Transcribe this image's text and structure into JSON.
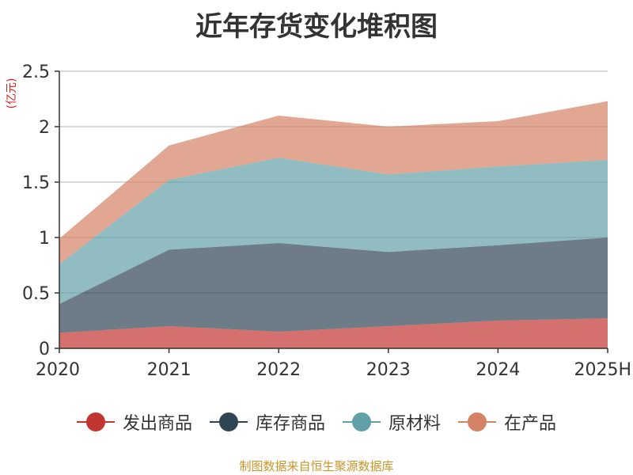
{
  "chart_data": {
    "type": "area",
    "stacked": true,
    "title": "近年存货变化堆积图",
    "ylabel": "(亿元)",
    "categories": [
      "2020",
      "2021",
      "2022",
      "2023",
      "2024",
      "2025H"
    ],
    "ylim": [
      0,
      2.5
    ],
    "yticks": [
      0,
      0.5,
      1,
      1.5,
      2,
      2.5
    ],
    "ytick_labels": [
      "0",
      "0.5",
      "1",
      "1.5",
      "2",
      "2.5"
    ],
    "grid": true,
    "legend_position": "bottom",
    "series": [
      {
        "name": "发出商品",
        "color": "#c23531",
        "values": [
          0.14,
          0.2,
          0.15,
          0.2,
          0.25,
          0.27
        ]
      },
      {
        "name": "库存商品",
        "color": "#2f4554",
        "values": [
          0.26,
          0.69,
          0.8,
          0.67,
          0.68,
          0.73
        ]
      },
      {
        "name": "原材料",
        "color": "#61a0a8",
        "values": [
          0.36,
          0.63,
          0.77,
          0.7,
          0.71,
          0.7
        ]
      },
      {
        "name": "在产品",
        "color": "#d48265",
        "values": [
          0.23,
          0.31,
          0.38,
          0.43,
          0.41,
          0.53
        ]
      }
    ],
    "source_note": "制图数据来自恒生聚源数据库"
  }
}
